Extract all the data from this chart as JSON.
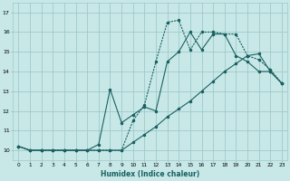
{
  "xlabel": "Humidex (Indice chaleur)",
  "bg_color": "#c8e8e8",
  "grid_color": "#a0c8c8",
  "line_color": "#1a6060",
  "xlim": [
    -0.5,
    23.5
  ],
  "ylim": [
    9.5,
    17.5
  ],
  "yticks": [
    10,
    11,
    12,
    13,
    14,
    15,
    16,
    17
  ],
  "xticks": [
    0,
    1,
    2,
    3,
    4,
    5,
    6,
    7,
    8,
    9,
    10,
    11,
    12,
    13,
    14,
    15,
    16,
    17,
    18,
    19,
    20,
    21,
    22,
    23
  ],
  "line1_x": [
    0,
    1,
    2,
    3,
    4,
    5,
    6,
    7,
    8,
    9,
    10,
    11,
    12,
    13,
    14,
    15,
    16,
    17,
    18,
    19,
    20,
    21,
    22,
    23
  ],
  "line1_y": [
    10.2,
    10.0,
    10.0,
    10.0,
    10.0,
    10.0,
    10.0,
    10.0,
    10.0,
    10.0,
    11.5,
    12.3,
    14.5,
    16.5,
    16.6,
    15.1,
    16.0,
    16.0,
    15.9,
    15.9,
    14.8,
    14.6,
    14.1,
    13.4
  ],
  "line2_x": [
    0,
    1,
    2,
    3,
    4,
    5,
    6,
    7,
    8,
    9,
    10,
    11,
    12,
    13,
    14,
    15,
    16,
    17,
    18,
    19,
    20,
    21,
    22,
    23
  ],
  "line2_y": [
    10.2,
    10.0,
    10.0,
    10.0,
    10.0,
    10.0,
    10.0,
    10.3,
    13.1,
    11.4,
    11.8,
    12.2,
    12.0,
    14.5,
    15.0,
    16.0,
    15.1,
    15.9,
    15.9,
    14.8,
    14.5,
    14.0,
    14.0,
    13.4
  ],
  "line3_x": [
    0,
    1,
    2,
    3,
    4,
    5,
    6,
    7,
    8,
    9,
    10,
    11,
    12,
    13,
    14,
    15,
    16,
    17,
    18,
    19,
    20,
    21,
    22,
    23
  ],
  "line3_y": [
    10.2,
    10.0,
    10.0,
    10.0,
    10.0,
    10.0,
    10.0,
    10.0,
    10.0,
    10.0,
    10.4,
    10.8,
    11.2,
    11.7,
    12.1,
    12.5,
    13.0,
    13.5,
    14.0,
    14.4,
    14.8,
    14.9,
    14.0,
    13.4
  ]
}
